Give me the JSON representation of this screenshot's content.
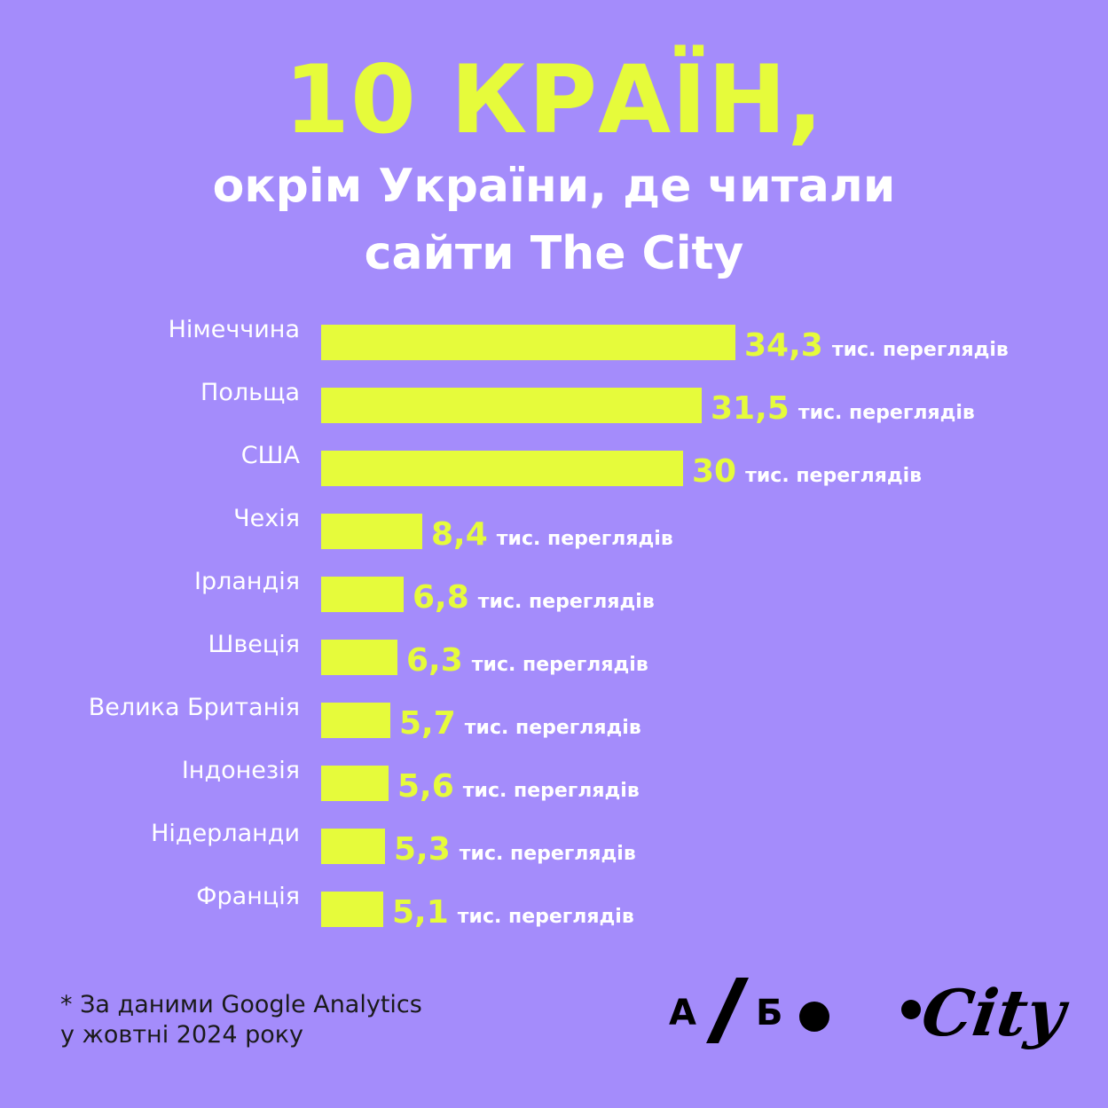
{
  "header": {
    "title": "10 КРАЇН,",
    "subtitle_line1": "окрім України, де читали",
    "subtitle_line2": "сайти The City"
  },
  "chart_data": {
    "type": "bar",
    "orientation": "horizontal",
    "title": "10 КРАЇН, окрім України, де читали сайти The City",
    "unit_label": "тис. переглядів",
    "categories": [
      "Німеччина",
      "Польща",
      "США",
      "Чехія",
      "Ірландія",
      "Швеція",
      "Велика Британія",
      "Індонезія",
      "Нідерланди",
      "Франція"
    ],
    "values": [
      34.3,
      31.5,
      30,
      8.4,
      6.8,
      6.3,
      5.7,
      5.6,
      5.3,
      5.1
    ],
    "value_labels": [
      "34,3",
      "31,5",
      "30",
      "8,4",
      "6,8",
      "6,3",
      "5,7",
      "5,6",
      "5,3",
      "5,1"
    ],
    "bar_color": "#e6fb3b",
    "grid": false,
    "legend": "none"
  },
  "footer": {
    "note_line1": "* За даними Google Analytics",
    "note_line2": "у жовтні 2024 року",
    "logo_ab_left": "А",
    "logo_ab_right": "Б",
    "logo_city": "City"
  },
  "colors": {
    "background": "#a48cfb",
    "accent": "#e6fb3b",
    "text_light": "#ffffff",
    "text_dark": "#1a1a1a"
  }
}
